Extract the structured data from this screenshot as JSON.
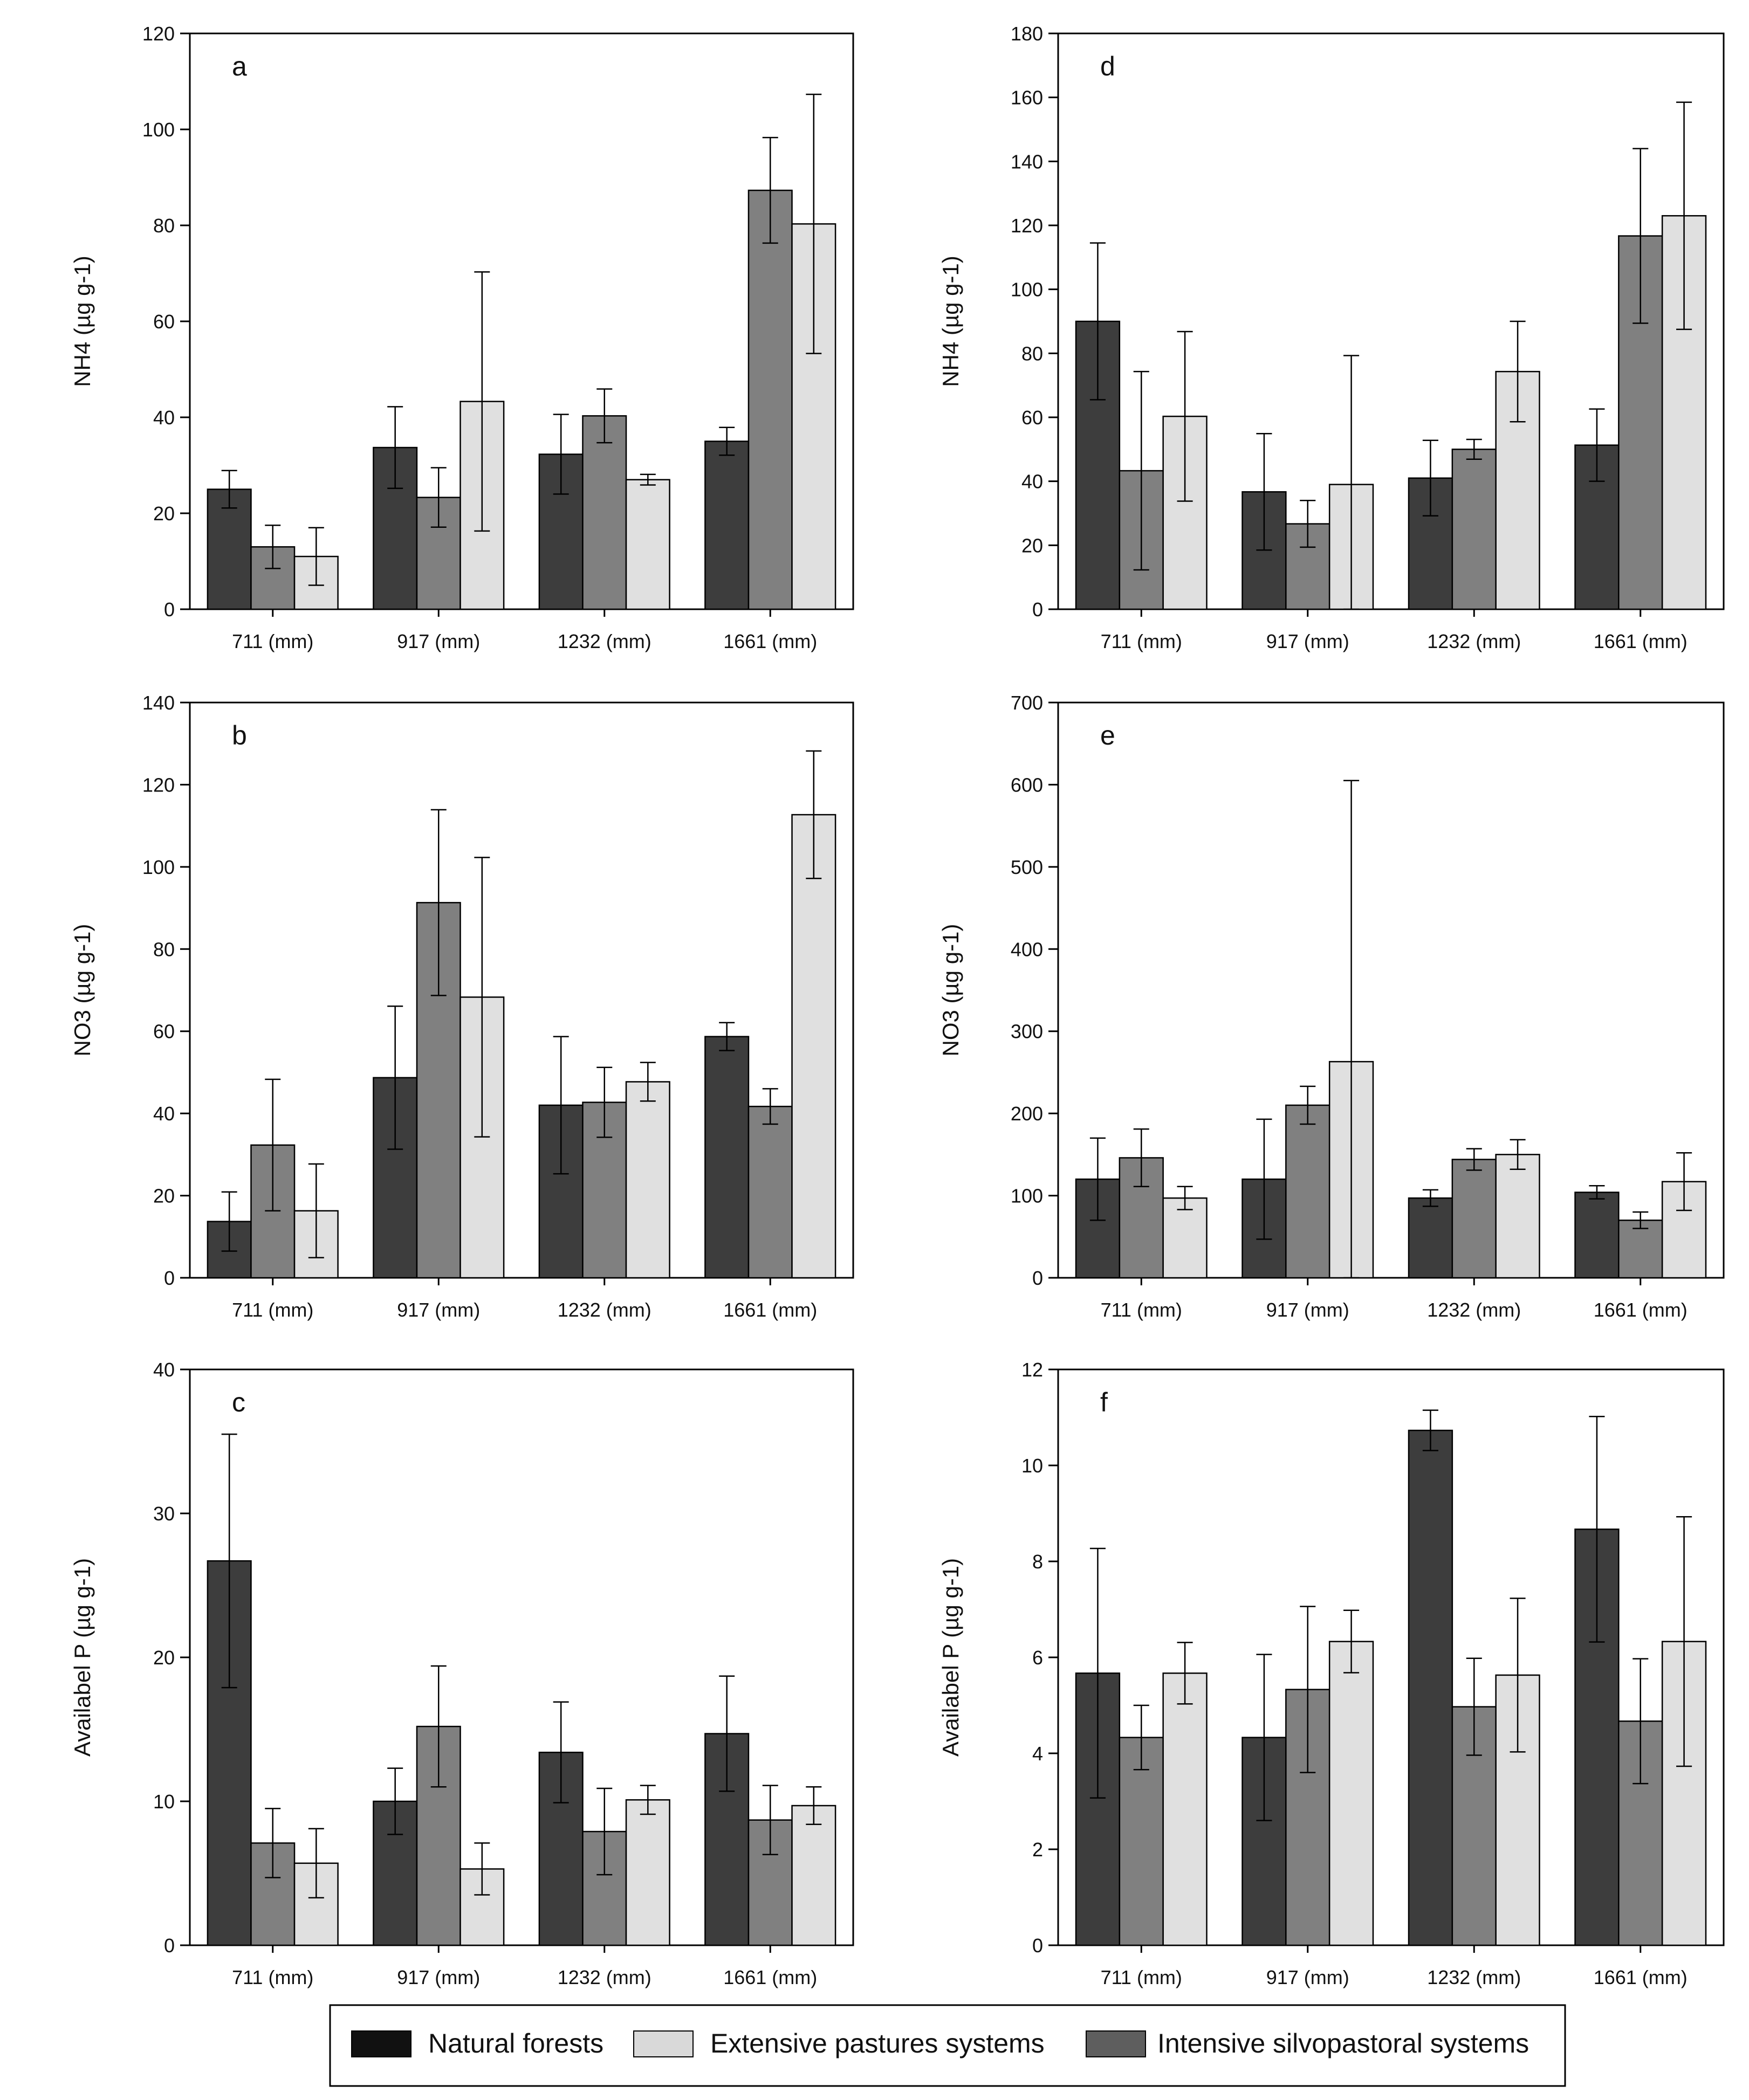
{
  "colors": {
    "natural_forests": "#3d3d3d",
    "intensive_silvopastoral": "#808080",
    "extensive_pastures": "#e0e0e0",
    "axis": "#000000"
  },
  "legend": {
    "items": [
      {
        "key": "natural_forests",
        "label": "Natural forests",
        "color": "#111111"
      },
      {
        "key": "extensive_pastures",
        "label": "Extensive pastures systems",
        "color": "#d9d9d9"
      },
      {
        "key": "intensive_silvopastoral",
        "label": "Intensive silvopastoral systems",
        "color": "#5e5e5e"
      }
    ]
  },
  "chart_data": [
    {
      "id": "a",
      "type": "bar",
      "panel_label": "a",
      "ylabel": "NH4 (µg g-1)",
      "ylim": [
        0,
        120
      ],
      "yticks": [
        "0",
        "20",
        "40",
        "60",
        "80",
        "100",
        "120"
      ],
      "categories": [
        "711 (mm)",
        "917 (mm)",
        "1232 (mm)",
        "1661 (mm)"
      ],
      "series": [
        {
          "name": "Natural forests",
          "values": [
            25,
            33.7,
            32.3,
            35
          ],
          "errors": [
            3.9,
            8.5,
            8.3,
            2.9
          ]
        },
        {
          "name": "Intensive silvopastoral systems",
          "values": [
            13,
            23.3,
            40.3,
            87.3
          ],
          "errors": [
            4.5,
            6.2,
            5.6,
            11
          ]
        },
        {
          "name": "Extensive pastures systems",
          "values": [
            11,
            43.3,
            27,
            80.3
          ],
          "errors": [
            6,
            27,
            1.1,
            27
          ]
        }
      ]
    },
    {
      "id": "b",
      "type": "bar",
      "panel_label": "b",
      "ylabel": "NO3 (µg g-1)",
      "ylim": [
        0,
        140
      ],
      "yticks": [
        "0",
        "20",
        "40",
        "60",
        "80",
        "100",
        "120",
        "140"
      ],
      "categories": [
        "711 (mm)",
        "917 (mm)",
        "1232 (mm)",
        "1661 (mm)"
      ],
      "series": [
        {
          "name": "Natural forests",
          "values": [
            13.7,
            48.7,
            42,
            58.7
          ],
          "errors": [
            7.2,
            17.4,
            16.7,
            3.4
          ]
        },
        {
          "name": "Intensive silvopastoral systems",
          "values": [
            32.3,
            91.3,
            42.7,
            41.7
          ],
          "errors": [
            16,
            22.6,
            8.5,
            4.3
          ]
        },
        {
          "name": "Extensive pastures systems",
          "values": [
            16.3,
            68.3,
            47.7,
            112.7
          ],
          "errors": [
            11.4,
            34,
            4.7,
            15.5
          ]
        }
      ]
    },
    {
      "id": "c",
      "type": "bar",
      "panel_label": "c",
      "ylabel": "Availabel P (µg g-1)",
      "ylim": [
        0,
        40
      ],
      "yticks": [
        "0",
        "10",
        "20",
        "30",
        "40"
      ],
      "categories": [
        "711 (mm)",
        "917 (mm)",
        "1232 (mm)",
        "1661 (mm)"
      ],
      "series": [
        {
          "name": "Natural forests",
          "values": [
            26.7,
            10,
            13.4,
            14.7
          ],
          "errors": [
            8.8,
            2.3,
            3.5,
            4
          ]
        },
        {
          "name": "Intensive silvopastoral systems",
          "values": [
            7.1,
            15.2,
            7.9,
            8.7
          ],
          "errors": [
            2.4,
            4.2,
            3,
            2.4
          ]
        },
        {
          "name": "Extensive pastures systems",
          "values": [
            5.7,
            5.3,
            10.1,
            9.7
          ],
          "errors": [
            2.4,
            1.8,
            1,
            1.3
          ]
        }
      ]
    },
    {
      "id": "d",
      "type": "bar",
      "panel_label": "d",
      "ylabel": "NH4 (µg g-1)",
      "ylim": [
        0,
        180
      ],
      "yticks": [
        "0",
        "20",
        "40",
        "60",
        "80",
        "100",
        "120",
        "140",
        "160",
        "180"
      ],
      "categories": [
        "711 (mm)",
        "917 (mm)",
        "1232 (mm)",
        "1661 (mm)"
      ],
      "series": [
        {
          "name": "Natural forests",
          "values": [
            90,
            36.7,
            41,
            51.3
          ],
          "errors": [
            24.5,
            18.2,
            11.8,
            11.3
          ]
        },
        {
          "name": "Intensive silvopastoral systems",
          "values": [
            43.3,
            26.7,
            50,
            116.7
          ],
          "errors": [
            31,
            7.3,
            3.1,
            27.3
          ]
        },
        {
          "name": "Extensive pastures systems",
          "values": [
            60.3,
            39,
            74.3,
            123
          ],
          "errors": [
            26.5,
            40.3,
            15.7,
            35.5
          ]
        }
      ]
    },
    {
      "id": "e",
      "type": "bar",
      "panel_label": "e",
      "ylabel": "NO3 (µg g-1)",
      "ylim": [
        0,
        700
      ],
      "yticks": [
        "0",
        "100",
        "200",
        "300",
        "400",
        "500",
        "600",
        "700"
      ],
      "categories": [
        "711 (mm)",
        "917 (mm)",
        "1232 (mm)",
        "1661 (mm)"
      ],
      "series": [
        {
          "name": "Natural forests",
          "values": [
            120,
            120,
            97,
            104
          ],
          "errors": [
            50,
            73,
            10,
            8
          ]
        },
        {
          "name": "Intensive silvopastoral systems",
          "values": [
            146,
            210,
            144,
            70
          ],
          "errors": [
            35,
            23,
            13,
            10
          ]
        },
        {
          "name": "Extensive pastures systems",
          "values": [
            97,
            263,
            150,
            117
          ],
          "errors": [
            14,
            342,
            18,
            35
          ]
        }
      ]
    },
    {
      "id": "f",
      "type": "bar",
      "panel_label": "f",
      "ylabel": "Availabel P (µg g-1)",
      "ylim": [
        0,
        12
      ],
      "yticks": [
        "0",
        "2",
        "4",
        "6",
        "8",
        "10",
        "12"
      ],
      "categories": [
        "711 (mm)",
        "917 (mm)",
        "1232 (mm)",
        "1661 (mm)"
      ],
      "series": [
        {
          "name": "Natural forests",
          "values": [
            5.67,
            4.33,
            10.73,
            8.67
          ],
          "errors": [
            2.6,
            1.73,
            0.42,
            2.35
          ]
        },
        {
          "name": "Intensive silvopastoral systems",
          "values": [
            4.33,
            5.33,
            4.97,
            4.67
          ],
          "errors": [
            0.67,
            1.73,
            1.01,
            1.3
          ]
        },
        {
          "name": "Extensive pastures systems",
          "values": [
            5.67,
            6.33,
            5.63,
            6.33
          ],
          "errors": [
            0.64,
            0.65,
            1.6,
            2.6
          ]
        }
      ]
    }
  ]
}
